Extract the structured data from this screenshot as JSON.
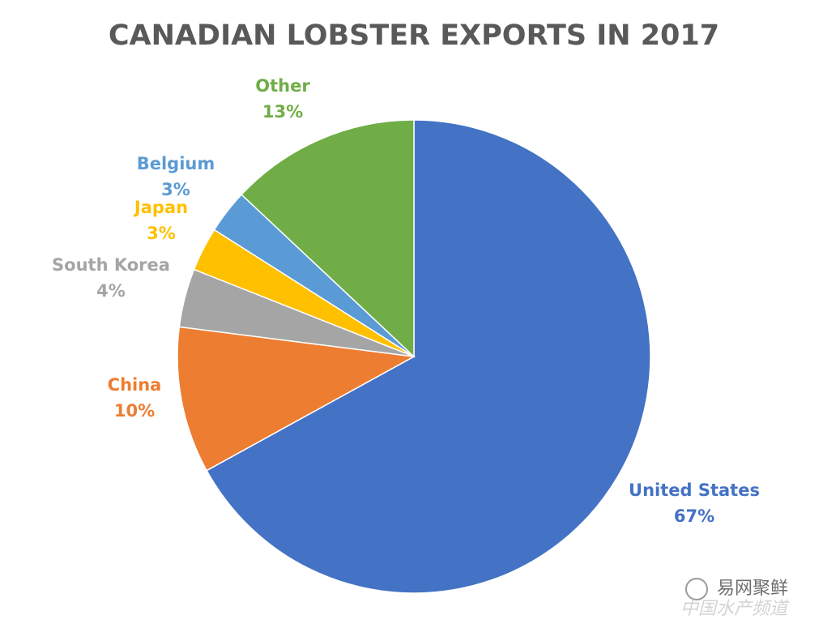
{
  "chart_data": {
    "type": "pie",
    "title": "CANADIAN LOBSTER EXPORTS IN 2017",
    "categories": [
      "United States",
      "China",
      "South Korea",
      "Japan",
      "Belgium",
      "Other"
    ],
    "values": [
      67,
      10,
      4,
      3,
      3,
      13
    ],
    "value_labels": [
      "67%",
      "10%",
      "4%",
      "3%",
      "3%",
      "13%"
    ],
    "colors": [
      "#4472c4",
      "#ed7d31",
      "#a5a5a5",
      "#ffc000",
      "#5b9bd5",
      "#70ad47"
    ]
  },
  "watermark": {
    "name": "易网聚鲜",
    "subtitle": "中国水产频道"
  }
}
